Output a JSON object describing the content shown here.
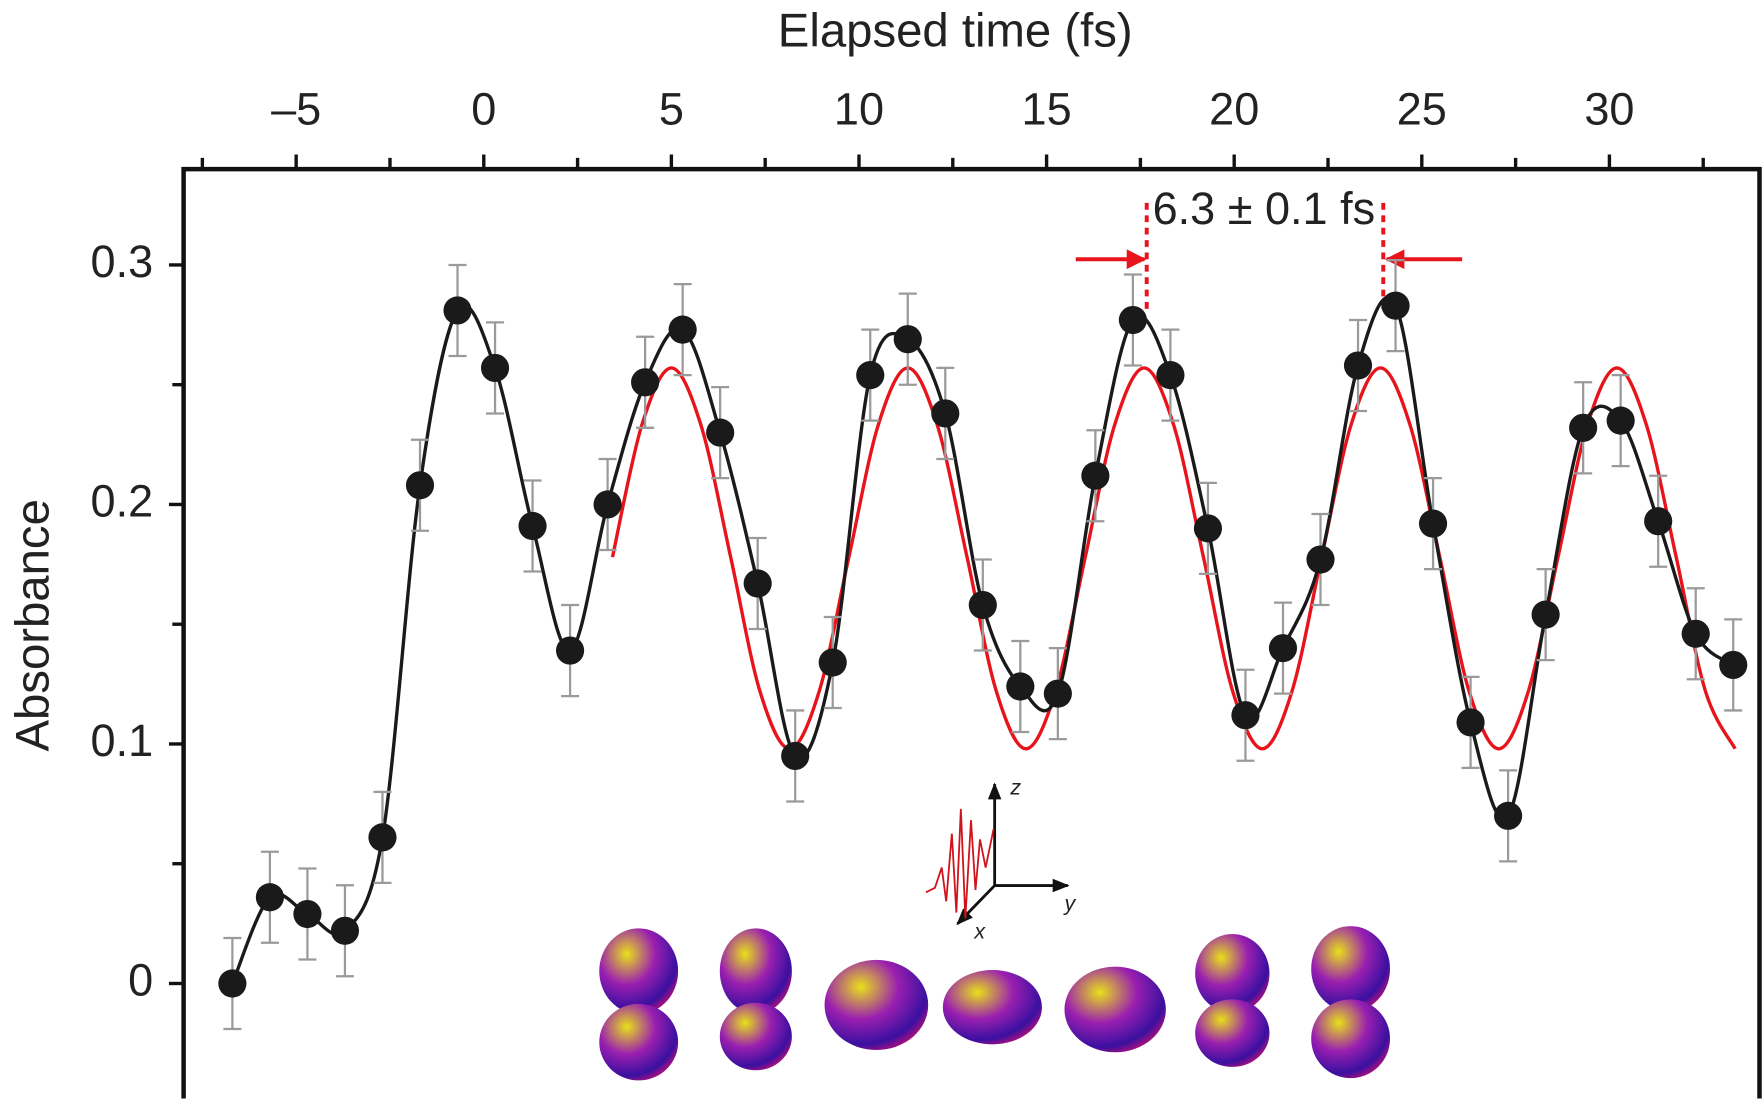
{
  "chart_data": {
    "type": "scatter",
    "x_label": "Elapsed time (fs)",
    "y_label": "Absorbance",
    "x_axis_position": "top",
    "xlim": [
      -8,
      34
    ],
    "ylim": [
      -0.048,
      0.34
    ],
    "xticks": [
      {
        "value": -5,
        "label": "–5"
      },
      0,
      5,
      10,
      15,
      20,
      25,
      30
    ],
    "xminorticks": [
      -7.5,
      -2.5,
      2.5,
      7.5,
      12.5,
      17.5,
      22.5,
      27.5,
      32.5
    ],
    "yticks": [
      0,
      0.1,
      0.2,
      0.3
    ],
    "yminorticks": [
      0.05,
      0.15,
      0.25
    ],
    "series": [
      {
        "type": "scatter",
        "color": "#1a1a1a",
        "error_color": "#9a9a9a",
        "fit_line": true,
        "x": [
          -6.7,
          -5.7,
          -4.7,
          -3.7,
          -2.7,
          -1.7,
          -0.7,
          0.3,
          1.3,
          2.3,
          3.3,
          4.3,
          5.3,
          6.3,
          7.3,
          8.3,
          9.3,
          10.3,
          11.3,
          12.3,
          13.3,
          14.3,
          15.3,
          16.3,
          17.3,
          18.3,
          19.3,
          20.3,
          21.3,
          22.3,
          23.3,
          24.3,
          25.3,
          26.3,
          27.3,
          28.3,
          29.3,
          30.3,
          31.3,
          32.3,
          33.3
        ],
        "values": [
          0,
          0.036,
          0.029,
          0.022,
          0.061,
          0.208,
          0.281,
          0.257,
          0.191,
          0.139,
          0.2,
          0.251,
          0.273,
          0.23,
          0.167,
          0.095,
          0.134,
          0.254,
          0.269,
          0.238,
          0.158,
          0.124,
          0.121,
          0.212,
          0.277,
          0.254,
          0.19,
          0.112,
          0.14,
          0.177,
          0.258,
          0.283,
          0.192,
          0.109,
          0.07,
          0.154,
          0.232,
          0.235,
          0.193,
          0.146,
          0.133
        ],
        "errors": [
          0.019,
          0.019,
          0.019,
          0.019,
          0.019,
          0.019,
          0.019,
          0.019,
          0.019,
          0.019,
          0.019,
          0.019,
          0.019,
          0.019,
          0.019,
          0.019,
          0.019,
          0.019,
          0.019,
          0.019,
          0.019,
          0.019,
          0.019,
          0.019,
          0.019,
          0.019,
          0.019,
          0.019,
          0.019,
          0.019,
          0.019,
          0.019,
          0.019,
          0.019,
          0.019,
          0.019,
          0.019,
          0.019,
          0.019,
          0.019,
          0.019
        ]
      },
      {
        "type": "line",
        "color": "#e8141c",
        "x": [
          3.43,
          4.21,
          5.0,
          5.79,
          6.58,
          7.36,
          8.15,
          8.94,
          9.73,
          10.51,
          11.3,
          12.09,
          12.88,
          13.66,
          14.45,
          15.24,
          16.03,
          16.81,
          17.6,
          18.39,
          19.18,
          19.96,
          20.75,
          21.54,
          22.33,
          23.11,
          23.9,
          24.69,
          25.48,
          26.26,
          27.05,
          27.84,
          28.63,
          29.41,
          30.2,
          30.99,
          31.78,
          32.56,
          33.35
        ],
        "values": [
          0.178,
          0.233,
          0.257,
          0.233,
          0.178,
          0.122,
          0.098,
          0.122,
          0.178,
          0.233,
          0.257,
          0.233,
          0.178,
          0.122,
          0.098,
          0.122,
          0.178,
          0.233,
          0.257,
          0.233,
          0.178,
          0.122,
          0.098,
          0.122,
          0.178,
          0.233,
          0.257,
          0.233,
          0.178,
          0.122,
          0.098,
          0.122,
          0.178,
          0.233,
          0.257,
          0.233,
          0.178,
          0.122,
          0.098
        ]
      }
    ],
    "annotations": [
      {
        "text": "6.3 ± 0.1 fs",
        "color": "#e8141c"
      }
    ],
    "inset_labels": [
      "z",
      "y",
      "x"
    ]
  }
}
